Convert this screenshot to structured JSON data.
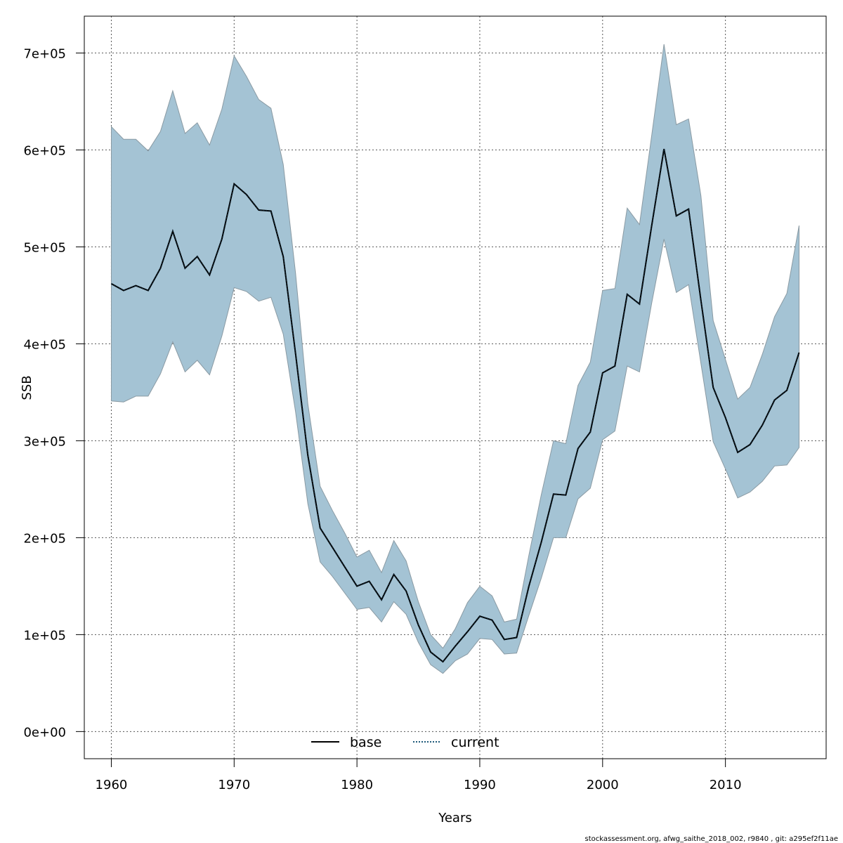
{
  "chart_data": {
    "type": "area",
    "xlabel": "Years",
    "ylabel": "SSB",
    "xlim": [
      1957.8,
      2018.2
    ],
    "ylim": [
      -28000,
      738000
    ],
    "x_ticks": [
      1960,
      1970,
      1980,
      1990,
      2000,
      2010
    ],
    "y_ticks": [
      {
        "value": 0,
        "label": "0e+00"
      },
      {
        "value": 100000,
        "label": "1e+05"
      },
      {
        "value": 200000,
        "label": "2e+05"
      },
      {
        "value": 300000,
        "label": "3e+05"
      },
      {
        "value": 400000,
        "label": "4e+05"
      },
      {
        "value": 500000,
        "label": "5e+05"
      },
      {
        "value": 600000,
        "label": "6e+05"
      },
      {
        "value": 700000,
        "label": "7e+05"
      }
    ],
    "grid": true,
    "legend": {
      "position": "bottom-center",
      "entries": [
        {
          "name": "base",
          "style": "solid",
          "color": "#000000"
        },
        {
          "name": "current",
          "style": "dotted",
          "color": "#1f5a7a"
        }
      ]
    },
    "band_color": "#a4c3d4",
    "band_edge_color": "#8a9aa3",
    "x": [
      1960,
      1961,
      1962,
      1963,
      1964,
      1965,
      1966,
      1967,
      1968,
      1969,
      1970,
      1971,
      1972,
      1973,
      1974,
      1975,
      1976,
      1977,
      1978,
      1979,
      1980,
      1981,
      1982,
      1983,
      1984,
      1985,
      1986,
      1987,
      1988,
      1989,
      1990,
      1991,
      1992,
      1993,
      1994,
      1995,
      1996,
      1997,
      1998,
      1999,
      2000,
      2001,
      2002,
      2003,
      2004,
      2005,
      2006,
      2007,
      2008,
      2009,
      2010,
      2011,
      2012,
      2013,
      2014,
      2015,
      2016
    ],
    "series": [
      {
        "name": "base",
        "values": [
          462000,
          455000,
          460000,
          455000,
          478000,
          516000,
          478000,
          490000,
          471000,
          508000,
          565000,
          554000,
          538000,
          537000,
          490000,
          390000,
          285000,
          210000,
          190000,
          170000,
          150000,
          155000,
          136000,
          162000,
          145000,
          110000,
          82000,
          72000,
          88000,
          103000,
          119000,
          115000,
          95000,
          97000,
          150000,
          195000,
          245000,
          244000,
          292000,
          309000,
          370000,
          377000,
          451000,
          441000,
          522000,
          601000,
          532000,
          539000,
          445000,
          355000,
          324000,
          288000,
          296000,
          316000,
          342000,
          352000,
          391000
        ]
      },
      {
        "name": "current",
        "values": [
          462000,
          455000,
          460000,
          455000,
          478000,
          516000,
          478000,
          490000,
          471000,
          508000,
          565000,
          554000,
          538000,
          537000,
          490000,
          390000,
          285000,
          210000,
          190000,
          170000,
          150000,
          155000,
          136000,
          162000,
          145000,
          110000,
          82000,
          72000,
          88000,
          103000,
          119000,
          115000,
          95000,
          97000,
          150000,
          195000,
          245000,
          244000,
          292000,
          309000,
          370000,
          377000,
          451000,
          441000,
          522000,
          601000,
          532000,
          539000,
          445000,
          355000,
          324000,
          288000,
          296000,
          316000,
          342000,
          352000,
          391000
        ]
      }
    ],
    "lower": [
      341000,
      340000,
      346000,
      346000,
      369000,
      402000,
      371000,
      383000,
      368000,
      408000,
      458000,
      454000,
      444000,
      448000,
      410000,
      330000,
      235000,
      175000,
      160000,
      143000,
      126000,
      128000,
      113000,
      134000,
      121000,
      92000,
      69000,
      60000,
      73000,
      80000,
      96000,
      95000,
      80000,
      81000,
      120000,
      158000,
      200000,
      200000,
      240000,
      251000,
      301000,
      310000,
      377000,
      371000,
      442000,
      508000,
      453000,
      461000,
      380000,
      299000,
      271000,
      241000,
      247000,
      258000,
      274000,
      275000,
      293000
    ],
    "upper": [
      624000,
      611000,
      611000,
      599000,
      619000,
      661000,
      617000,
      628000,
      605000,
      642000,
      697000,
      676000,
      652000,
      643000,
      585000,
      473000,
      338000,
      253000,
      228000,
      205000,
      180000,
      187000,
      164000,
      197000,
      176000,
      134000,
      100000,
      86000,
      106000,
      133000,
      150000,
      140000,
      113000,
      116000,
      182000,
      244000,
      300000,
      297000,
      357000,
      381000,
      455000,
      457000,
      540000,
      523000,
      615000,
      709000,
      626000,
      632000,
      553000,
      424000,
      384000,
      343000,
      355000,
      389000,
      428000,
      452000,
      522000
    ]
  },
  "footer": "stockassessment.org, afwg_saithe_2018_002, r9840 , git: a295ef2f11ae"
}
